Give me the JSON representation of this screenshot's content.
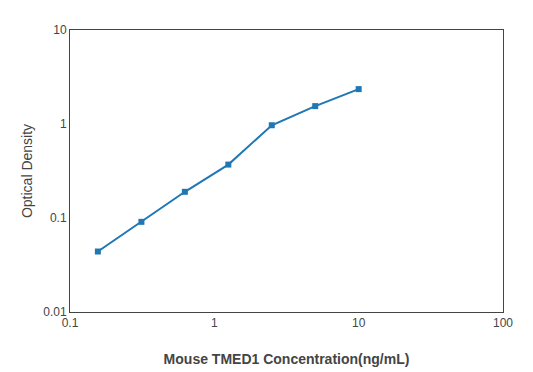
{
  "chart_data": {
    "type": "line",
    "x": [
      0.156,
      0.3125,
      0.625,
      1.25,
      2.5,
      5.0,
      10.0
    ],
    "values": [
      0.044,
      0.091,
      0.19,
      0.37,
      0.97,
      1.55,
      2.35
    ],
    "xlabel": "Mouse TMED1 Concentration(ng/mL)",
    "ylabel": "Optical Density",
    "xlim": [
      0.1,
      100
    ],
    "ylim": [
      0.01,
      10
    ],
    "xticks": [
      0.1,
      1,
      10,
      100
    ],
    "yticks": [
      0.01,
      0.1,
      1,
      10
    ],
    "log": true,
    "grid": false,
    "marker": "square"
  }
}
